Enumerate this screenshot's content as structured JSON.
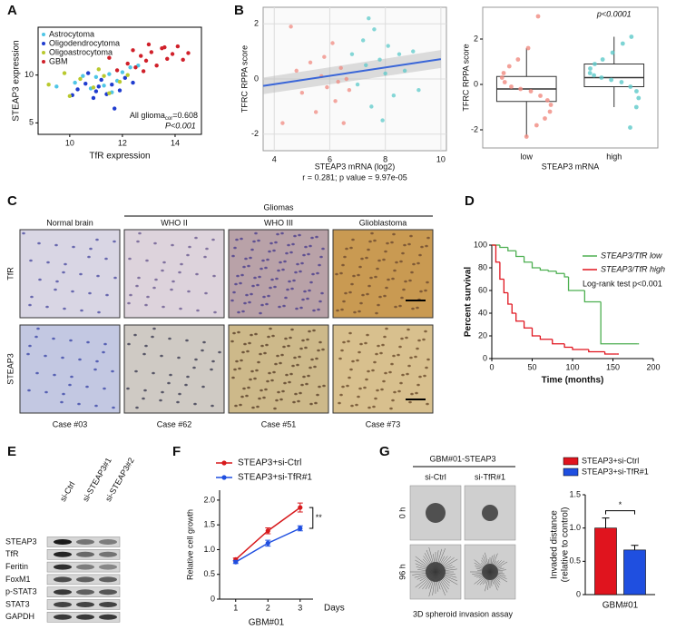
{
  "chart_data": [
    {
      "type": "scatter",
      "label": "A",
      "xlabel": "TfR expression",
      "ylabel": "STEAP3 expression",
      "xlim": [
        8.8,
        15
      ],
      "ylim": [
        3.8,
        15
      ],
      "xticks": [
        10,
        12,
        14
      ],
      "yticks": [
        5,
        10
      ],
      "annotation": [
        "All glioma",
        "cor",
        "=0.608"
      ],
      "p_text": "P<0.001",
      "series": [
        {
          "name": "Astrocytoma",
          "color": "#4fc6e6",
          "x": [
            10.2,
            10.8,
            11.0,
            11.3,
            11.5,
            11.8,
            12.0,
            12.3,
            10.5,
            11.6,
            12.6,
            9.5
          ],
          "values": [
            9.2,
            8.6,
            9.8,
            8.9,
            10.1,
            9.4,
            10.3,
            10.8,
            9.9,
            8.2,
            11.0,
            8.8
          ]
        },
        {
          "name": "Oligodendrocytoma",
          "color": "#1f3ccf",
          "x": [
            10.3,
            10.6,
            10.9,
            11.1,
            11.2,
            11.4,
            11.6,
            11.9,
            12.1,
            10.1,
            11.7,
            12.4,
            10.7,
            11.0
          ],
          "values": [
            8.5,
            9.1,
            7.6,
            8.8,
            9.5,
            8.0,
            9.0,
            8.4,
            9.7,
            7.9,
            6.5,
            9.2,
            10.2,
            8.3
          ]
        },
        {
          "name": "Oligoastrocytoma",
          "color": "#b9c92e",
          "x": [
            9.2,
            9.8,
            10.4,
            10.9,
            11.3,
            11.5,
            11.9,
            12.2,
            10.0,
            11.1
          ],
          "values": [
            9.0,
            10.2,
            9.6,
            8.7,
            9.9,
            8.1,
            9.3,
            10.0,
            7.8,
            10.6
          ]
        },
        {
          "name": "GBM",
          "color": "#d0202a",
          "x": [
            11.8,
            12.2,
            12.5,
            12.7,
            12.9,
            13.1,
            13.3,
            13.5,
            13.7,
            13.9,
            14.1,
            14.3,
            12.4,
            13.0,
            13.6,
            14.5,
            11.5,
            12.8
          ],
          "values": [
            10.5,
            11.2,
            10.8,
            12.0,
            11.5,
            12.4,
            11.0,
            12.8,
            11.7,
            12.2,
            13.0,
            11.6,
            12.6,
            13.2,
            12.9,
            12.3,
            11.8,
            10.4
          ]
        }
      ]
    },
    {
      "type": "scatter",
      "label": "B",
      "xlabel": "STEAP3 mRNA (log2)",
      "ylabel": "TFRC RPPA score",
      "caption": "r = 0.281; p value = 9.97e-05",
      "grid": true,
      "xlim": [
        3.6,
        10.2
      ],
      "ylim": [
        -2.6,
        2.6
      ],
      "xticks": [
        4,
        6,
        8,
        10
      ],
      "yticks": [
        -2,
        0,
        2
      ],
      "fit": {
        "color": "#3a66d8",
        "x": [
          3.6,
          10
        ],
        "values": [
          -0.25,
          0.72
        ],
        "lower": [
          -0.55,
          0.4
        ],
        "upper": [
          0.05,
          1.05
        ]
      },
      "series": [
        {
          "color": "#f08a80",
          "x": [
            4.3,
            4.8,
            5.0,
            5.3,
            5.5,
            5.7,
            5.9,
            6.1,
            6.2,
            6.4,
            6.5,
            6.6,
            6.7,
            4.6,
            5.8,
            6.3
          ],
          "values": [
            -1.6,
            0.3,
            -0.5,
            0.6,
            -1.2,
            0.1,
            -0.3,
            1.3,
            -0.8,
            0.4,
            -1.6,
            0.0,
            -0.4,
            1.9,
            0.8,
            -0.1
          ]
        },
        {
          "color": "#5cc9c9",
          "x": [
            6.8,
            7.0,
            7.2,
            7.3,
            7.5,
            7.6,
            7.8,
            8.0,
            8.1,
            8.3,
            8.5,
            8.7,
            9.0,
            9.2,
            7.4,
            7.9
          ],
          "values": [
            0.9,
            -0.2,
            1.4,
            0.5,
            -1.0,
            1.8,
            0.7,
            0.2,
            1.2,
            -0.6,
            0.9,
            0.3,
            1.0,
            -0.4,
            2.2,
            -1.5
          ]
        }
      ]
    },
    {
      "type": "box",
      "xlabel": "STEAP3 mRNA",
      "ylabel": "TFRC RPPA score",
      "annotation": "p<0.0001",
      "ylim": [
        -2.8,
        3.4
      ],
      "yticks": [
        -2,
        0,
        2
      ],
      "categories": [
        "low",
        "high"
      ],
      "colors": [
        "#f08a80",
        "#5cc9c9"
      ],
      "boxes": [
        {
          "whisker_low": -2.3,
          "q1": -0.75,
          "median": -0.2,
          "q3": 0.35,
          "whisker_high": 1.6
        },
        {
          "whisker_low": -1.0,
          "q1": -0.1,
          "median": 0.3,
          "q3": 0.9,
          "whisker_high": 2.1
        }
      ],
      "points": [
        [
          -2.3,
          -1.8,
          -1.5,
          -1.2,
          -0.9,
          -0.7,
          -0.5,
          -0.3,
          -0.2,
          -0.1,
          0.1,
          0.3,
          0.5,
          0.8,
          1.1,
          1.6,
          3.0
        ],
        [
          -1.9,
          -1.0,
          -0.6,
          -0.3,
          -0.1,
          0.1,
          0.2,
          0.3,
          0.4,
          0.5,
          0.7,
          0.9,
          1.1,
          1.4,
          1.8,
          2.1
        ]
      ]
    },
    {
      "type": "step",
      "label": "D",
      "xlabel": "Time (months)",
      "ylabel": "Percent survival",
      "annotation": "Log-rank test p<0.001",
      "xlim": [
        0,
        200
      ],
      "ylim": [
        0,
        100
      ],
      "xticks": [
        0,
        50,
        100,
        150,
        200
      ],
      "yticks": [
        0,
        20,
        40,
        60,
        80,
        100
      ],
      "series": [
        {
          "name": "STEAP3/TfR low",
          "color": "#4caf50",
          "x": [
            0,
            10,
            20,
            30,
            40,
            50,
            60,
            70,
            80,
            90,
            95,
            115,
            135,
            180
          ],
          "values": [
            100,
            98,
            95,
            90,
            85,
            80,
            78,
            77,
            75,
            72,
            60,
            50,
            13,
            13
          ]
        },
        {
          "name": "STEAP3/TfR high",
          "color": "#e0141e",
          "x": [
            0,
            5,
            10,
            15,
            20,
            25,
            30,
            40,
            50,
            60,
            75,
            90,
            100,
            120,
            140,
            155
          ],
          "values": [
            100,
            85,
            70,
            58,
            48,
            40,
            33,
            27,
            20,
            17,
            13,
            10,
            8,
            6,
            4,
            4
          ]
        }
      ]
    },
    {
      "type": "line",
      "label": "F",
      "xlabel": "GBM#01",
      "x_unit": "Days",
      "ylabel": "Relative cell growth",
      "annotation": "**",
      "xlim": [
        0.5,
        3.4
      ],
      "ylim": [
        0,
        2.2
      ],
      "xticks": [
        1,
        2,
        3
      ],
      "yticks": [
        0,
        0.5,
        {
          "value": 1,
          "label": "1.0"
        },
        1.5,
        {
          "value": 2,
          "label": "2.0"
        }
      ],
      "series": [
        {
          "name": "STEAP3+si-Ctrl",
          "color": "#d7191c",
          "x": [
            1,
            2,
            3
          ],
          "values": [
            0.8,
            1.38,
            1.85
          ],
          "errors": [
            0.03,
            0.06,
            0.09
          ]
        },
        {
          "name": "STEAP3+si-TfR#1",
          "color": "#1f4fe0",
          "x": [
            1,
            2,
            3
          ],
          "values": [
            0.75,
            1.13,
            1.43
          ],
          "errors": [
            0.03,
            0.06,
            0.05
          ]
        }
      ]
    },
    {
      "type": "bar",
      "ylabel": [
        "Invaded distance",
        "(relative to control)"
      ],
      "annotation": "*",
      "categories": [
        "GBM#01"
      ],
      "ylim": [
        0,
        1.5
      ],
      "yticks": [
        0,
        0.5,
        {
          "value": 1,
          "label": "1.0"
        },
        1.5
      ],
      "series": [
        {
          "name": "STEAP3+si-Ctrl",
          "color": "#e0141e",
          "values": [
            1.0
          ],
          "errors": [
            0.15
          ]
        },
        {
          "name": "STEAP3+si-TfR#1",
          "color": "#1f4fe0",
          "values": [
            0.67
          ],
          "errors": [
            0.07
          ]
        }
      ]
    }
  ],
  "ihc": {
    "label": "C",
    "group": "Gliomas",
    "columns": [
      "Normal brain",
      "WHO II",
      "WHO III",
      "Glioblastoma"
    ],
    "rows": [
      "TfR",
      "STEAP3"
    ],
    "cases": [
      "Case #03",
      "Case #62",
      "Case #51",
      "Case #73"
    ]
  },
  "western": {
    "label": "E",
    "lanes": [
      "si-Ctrl",
      "si-STEAP3#1",
      "si-STEAP3#2"
    ],
    "proteins": [
      "STEAP3",
      "TfR",
      "Feritin",
      "FoxM1",
      "p-STAT3",
      "STAT3",
      "GAPDH"
    ]
  },
  "spheroid": {
    "label": "G",
    "title": "GBM#01-STEAP3",
    "columns": [
      "si-Ctrl",
      "si-TfR#1"
    ],
    "rows": [
      "0 h",
      "96 h"
    ],
    "caption": "3D spheroid invasion assay"
  }
}
